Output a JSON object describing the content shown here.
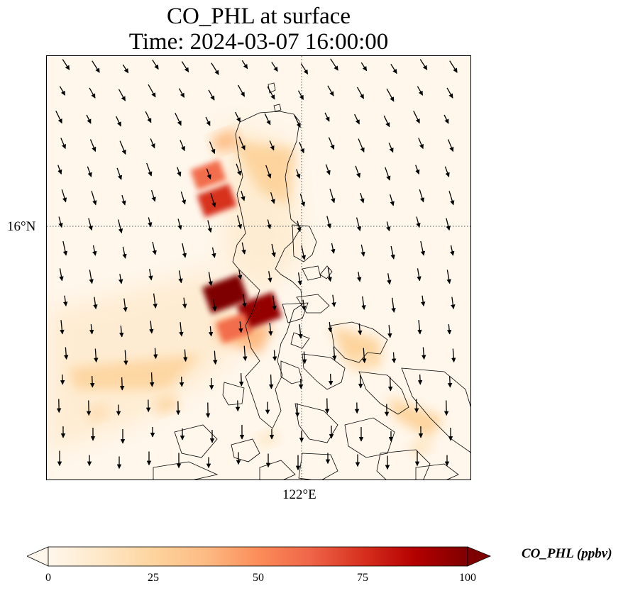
{
  "figure": {
    "title_line1": "CO_PHL at surface",
    "title_line2": "Time: 2024-03-07 16:00:00",
    "colorbar_label": "CO_PHL (ppbv)",
    "colormap": "OrRd",
    "colormap_stops": [
      "#fff7ec",
      "#fee8c8",
      "#fdd49e",
      "#fdbb84",
      "#fc8d59",
      "#ef6548",
      "#d7301f",
      "#b30000",
      "#7f0000"
    ]
  },
  "map": {
    "lat_label": "16°N",
    "lon_label": "122°E",
    "extent": {
      "lon_min": 119.0,
      "lon_max": 124.0,
      "lat_min": 13.0,
      "lat_max": 18.0
    },
    "gridlines": {
      "lat": 16,
      "lon": 122,
      "style": "dotted"
    },
    "wind_vectors": "shown"
  },
  "colorbar": {
    "ticks": [
      "0",
      "25",
      "50",
      "75",
      "100"
    ],
    "range": [
      0,
      100
    ],
    "extend": "both"
  },
  "chart_data": {
    "type": "heatmap",
    "title": "CO_PHL at surface\nTime: 2024-03-07 16:00:00",
    "colorbar_label": "CO_PHL (ppbv)",
    "vmin": 0,
    "vmax": 100,
    "hotspots": [
      {
        "lon": 121.1,
        "lat": 15.2,
        "value": 100
      },
      {
        "lon": 121.5,
        "lat": 15.0,
        "value": 95
      },
      {
        "lon": 121.2,
        "lat": 14.8,
        "value": 60
      },
      {
        "lon": 121.0,
        "lat": 16.3,
        "value": 75
      },
      {
        "lon": 120.9,
        "lat": 16.6,
        "value": 60
      },
      {
        "lon": 121.1,
        "lat": 17.0,
        "value": 35
      },
      {
        "lon": 120.4,
        "lat": 13.9,
        "value": 22
      },
      {
        "lon": 119.6,
        "lat": 13.8,
        "value": 18
      },
      {
        "lon": 122.7,
        "lat": 14.4,
        "value": 18
      },
      {
        "lon": 123.4,
        "lat": 13.4,
        "value": 14
      },
      {
        "lon": 121.6,
        "lat": 13.5,
        "value": 12
      }
    ]
  }
}
